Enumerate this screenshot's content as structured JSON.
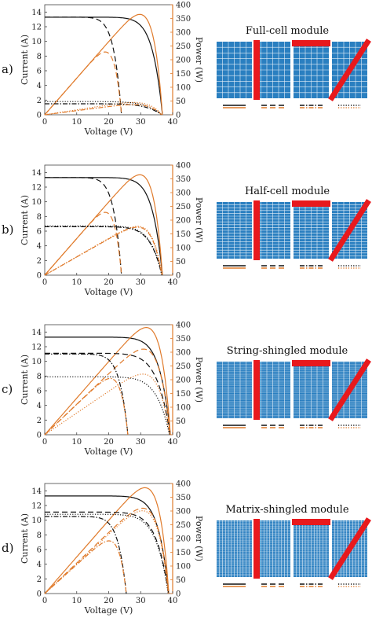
{
  "colors": {
    "current": "#111111",
    "power": "#e07b2c",
    "cell_fill": "#2a7fc0",
    "cell_line": "#e6f0f8",
    "shade": "#e8191d"
  },
  "panels": [
    {
      "label": "a)",
      "module_title": "Full-cell module",
      "cell_grid": {
        "cols": 6,
        "rows": 10
      },
      "chart_data": {
        "type": "line",
        "xlabel": "Voltage (V)",
        "ylabel_left": "Current (A)",
        "ylabel_right": "Power (W)",
        "xlim": [
          0,
          40
        ],
        "ylim_left": [
          0,
          15
        ],
        "ylim_right": [
          0,
          400
        ],
        "xticks": [
          0,
          10,
          20,
          30,
          40
        ],
        "yticks_left": [
          0,
          2,
          4,
          6,
          8,
          10,
          12,
          14
        ],
        "yticks_right": [
          0,
          50,
          100,
          150,
          200,
          250,
          300,
          350,
          400
        ],
        "curves": [
          {
            "style": "solid",
            "isc": 13.3,
            "voc": 36.8,
            "n": 3.0
          },
          {
            "style": "dashed",
            "isc": 13.3,
            "voc": 24.0,
            "n": 2.5
          },
          {
            "style": "dotted",
            "isc": 1.8,
            "voc": 36.6,
            "n": 2.0
          },
          {
            "style": "dashdot",
            "isc": 1.5,
            "voc": 36.5,
            "n": 2.0
          }
        ]
      }
    },
    {
      "label": "b)",
      "module_title": "Half-cell module",
      "cell_grid": {
        "cols": 6,
        "rows": 20
      },
      "chart_data": {
        "type": "line",
        "xlabel": "Voltage (V)",
        "ylabel_left": "Current (A)",
        "ylabel_right": "Power (W)",
        "xlim": [
          0,
          40
        ],
        "ylim_left": [
          0,
          15
        ],
        "ylim_right": [
          0,
          400
        ],
        "xticks": [
          0,
          10,
          20,
          30,
          40
        ],
        "yticks_left": [
          0,
          2,
          4,
          6,
          8,
          10,
          12,
          14
        ],
        "yticks_right": [
          0,
          50,
          100,
          150,
          200,
          250,
          300,
          350,
          400
        ],
        "curves": [
          {
            "style": "solid",
            "isc": 13.3,
            "voc": 36.8,
            "n": 3.0
          },
          {
            "style": "dashed",
            "isc": 13.3,
            "voc": 24.0,
            "n": 2.5
          },
          {
            "style": "dotted",
            "isc": 6.7,
            "voc": 36.7,
            "n": 2.6
          },
          {
            "style": "dashdot",
            "isc": 6.6,
            "voc": 36.6,
            "n": 2.6
          }
        ]
      }
    },
    {
      "label": "c)",
      "module_title": "String-shingled module",
      "cell_grid": {
        "cols": 6,
        "rows": 40
      },
      "chart_data": {
        "type": "line",
        "xlabel": "Voltage (V)",
        "ylabel_left": "Current (A)",
        "ylabel_right": "Power (W)",
        "xlim": [
          0,
          40
        ],
        "ylim_left": [
          0,
          15
        ],
        "ylim_right": [
          0,
          400
        ],
        "xticks": [
          0,
          10,
          20,
          30,
          40
        ],
        "yticks_left": [
          0,
          2,
          4,
          6,
          8,
          10,
          12,
          14
        ],
        "yticks_right": [
          0,
          50,
          100,
          150,
          200,
          250,
          300,
          350,
          400
        ],
        "curves": [
          {
            "style": "solid",
            "isc": 13.3,
            "voc": 39.3,
            "n": 3.0
          },
          {
            "style": "dashed",
            "isc": 11.1,
            "voc": 39.2,
            "n": 2.5
          },
          {
            "style": "dotted",
            "isc": 7.9,
            "voc": 39.0,
            "n": 2.5
          },
          {
            "style": "dashdot",
            "isc": 11.0,
            "voc": 26.0,
            "n": 2.5
          }
        ]
      }
    },
    {
      "label": "d)",
      "module_title": "Matrix-shingled module",
      "cell_grid": {
        "cols": 12,
        "rows": 40
      },
      "chart_data": {
        "type": "line",
        "xlabel": "Voltage (V)",
        "ylabel_left": "Current (A)",
        "ylabel_right": "Power (W)",
        "xlim": [
          0,
          40
        ],
        "ylim_left": [
          0,
          15
        ],
        "ylim_right": [
          0,
          400
        ],
        "xticks": [
          0,
          10,
          20,
          30,
          40
        ],
        "yticks_left": [
          0,
          2,
          4,
          6,
          8,
          10,
          12,
          14
        ],
        "yticks_right": [
          0,
          50,
          100,
          150,
          200,
          250,
          300,
          350,
          400
        ],
        "curves": [
          {
            "style": "solid",
            "isc": 13.3,
            "voc": 38.8,
            "n": 3.0
          },
          {
            "style": "dashed",
            "isc": 11.1,
            "voc": 38.7,
            "n": 2.6
          },
          {
            "style": "dotted",
            "isc": 10.8,
            "voc": 38.6,
            "n": 2.6
          },
          {
            "style": "dashdot",
            "isc": 10.5,
            "voc": 25.5,
            "n": 2.5
          }
        ]
      }
    }
  ]
}
